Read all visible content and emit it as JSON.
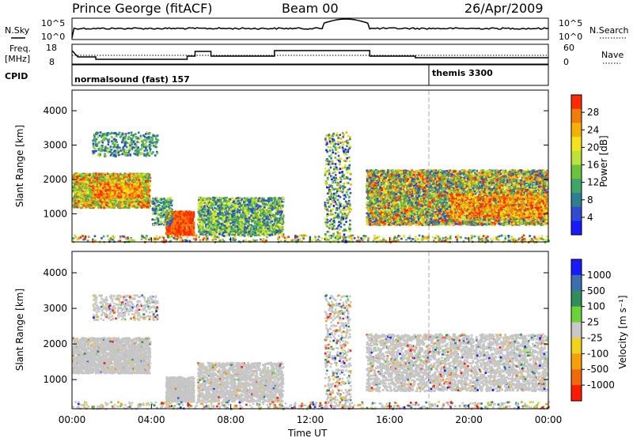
{
  "header": {
    "title": "Prince George (fitACF)",
    "beam": "Beam 00",
    "date": "26/Apr/2009"
  },
  "top_panels": {
    "nsky_label": "N.Sky",
    "nsky_ticks": [
      "10^5",
      "10^0"
    ],
    "nsearch_label": "N.Search",
    "nsearch_ticks": [
      "10^5",
      "10^0"
    ],
    "freq_label": "Freq.",
    "freq_unit": "[MHz]",
    "freq_ticks": [
      "18",
      "8"
    ],
    "nave_label": "Nave",
    "nave_ticks": [
      "60",
      "0"
    ],
    "cpid_label": "CPID",
    "cpid_entries": [
      {
        "name": "normalsound (fast) 157",
        "start_ut": "00:00"
      },
      {
        "name": "themis 3300",
        "start_ut": "18:00"
      }
    ]
  },
  "chart_data": [
    {
      "type": "heatmap",
      "name": "power",
      "ylabel": "Slant Range [km]",
      "yticks": [
        1000,
        2000,
        3000,
        4000
      ],
      "ylim": [
        180,
        4600
      ],
      "xlim_hours": [
        0,
        24
      ],
      "colorbar_label": "Power [dB]",
      "colorbar_ticks": [
        "28",
        "24",
        "20",
        "16",
        "12",
        "8",
        "4"
      ],
      "colorbar_colors": [
        "#1a1aff",
        "#2f4cd0",
        "#2e7f8f",
        "#3ea66a",
        "#6cc23a",
        "#bde13a",
        "#f2e31c",
        "#f5b10a",
        "#f07c0c",
        "#ff2a00"
      ]
    },
    {
      "type": "heatmap",
      "name": "velocity",
      "ylabel": "Slant Range [km]",
      "yticks": [
        1000,
        2000,
        3000,
        4000
      ],
      "ylim": [
        180,
        4600
      ],
      "xlim_hours": [
        0,
        24
      ],
      "colorbar_label": "Velocity [m s⁻¹]",
      "colorbar_ticks": [
        "1000",
        "500",
        "100",
        "25",
        "-25",
        "-100",
        "-500",
        "-1000"
      ],
      "colorbar_colors": [
        "#1a1aff",
        "#3b6fb0",
        "#2e8f5a",
        "#6cd23a",
        "#c8c8c8",
        "#f2d31c",
        "#f5a00a",
        "#f06a0c",
        "#ff1a00"
      ]
    }
  ],
  "xaxis": {
    "ticks": [
      "00:00",
      "04:00",
      "08:00",
      "12:00",
      "16:00",
      "20:00",
      "00:00"
    ],
    "label": "Time UT"
  },
  "colors": {
    "gray_scatter": "#c6c6c6"
  }
}
